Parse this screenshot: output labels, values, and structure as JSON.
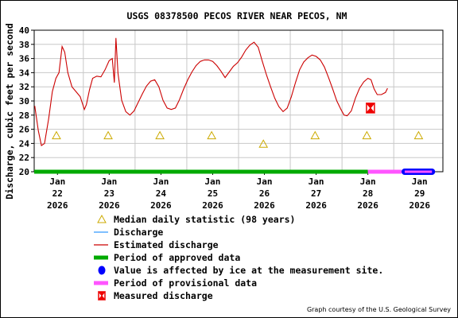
{
  "chart_data": {
    "type": "line",
    "title": "USGS 08378500 PECOS RIVER NEAR PECOS, NM",
    "ylabel": "Discharge, cubic feet per second",
    "ylim": [
      20,
      40
    ],
    "yticks": [
      20,
      22,
      24,
      26,
      28,
      30,
      32,
      34,
      36,
      38,
      40
    ],
    "xlim": [
      21.55,
      29.45
    ],
    "xticks": [
      {
        "x": 22,
        "label": [
          "Jan",
          "22",
          "2026"
        ]
      },
      {
        "x": 23,
        "label": [
          "Jan",
          "23",
          "2026"
        ]
      },
      {
        "x": 24,
        "label": [
          "Jan",
          "24",
          "2026"
        ]
      },
      {
        "x": 25,
        "label": [
          "Jan",
          "25",
          "2026"
        ]
      },
      {
        "x": 26,
        "label": [
          "Jan",
          "26",
          "2026"
        ]
      },
      {
        "x": 27,
        "label": [
          "Jan",
          "27",
          "2026"
        ]
      },
      {
        "x": 28,
        "label": [
          "Jan",
          "28",
          "2026"
        ]
      },
      {
        "x": 29,
        "label": [
          "Jan",
          "29",
          "2026"
        ]
      }
    ],
    "grid": true,
    "series": [
      {
        "name": "Estimated discharge",
        "color": "#cc0000",
        "points": [
          [
            21.56,
            29.3
          ],
          [
            21.63,
            25.8
          ],
          [
            21.69,
            23.7
          ],
          [
            21.75,
            24.0
          ],
          [
            21.83,
            27.5
          ],
          [
            21.9,
            31.3
          ],
          [
            21.97,
            33.2
          ],
          [
            22.03,
            34.0
          ],
          [
            22.09,
            37.7
          ],
          [
            22.14,
            36.9
          ],
          [
            22.2,
            34.0
          ],
          [
            22.28,
            32.0
          ],
          [
            22.36,
            31.3
          ],
          [
            22.44,
            30.6
          ],
          [
            22.52,
            28.8
          ],
          [
            22.56,
            29.5
          ],
          [
            22.62,
            31.6
          ],
          [
            22.68,
            33.2
          ],
          [
            22.76,
            33.5
          ],
          [
            22.84,
            33.4
          ],
          [
            22.92,
            34.4
          ],
          [
            23.0,
            35.7
          ],
          [
            23.06,
            36.0
          ],
          [
            23.1,
            32.6
          ],
          [
            23.13,
            38.9
          ],
          [
            23.17,
            33.9
          ],
          [
            23.24,
            30.1
          ],
          [
            23.32,
            28.5
          ],
          [
            23.4,
            28.0
          ],
          [
            23.48,
            28.6
          ],
          [
            23.56,
            29.8
          ],
          [
            23.64,
            31.0
          ],
          [
            23.72,
            32.1
          ],
          [
            23.8,
            32.8
          ],
          [
            23.88,
            33.0
          ],
          [
            23.96,
            32.0
          ],
          [
            24.04,
            30.1
          ],
          [
            24.12,
            29.0
          ],
          [
            24.2,
            28.8
          ],
          [
            24.28,
            29.0
          ],
          [
            24.36,
            30.2
          ],
          [
            24.44,
            31.7
          ],
          [
            24.52,
            33.0
          ],
          [
            24.6,
            34.1
          ],
          [
            24.68,
            35.0
          ],
          [
            24.76,
            35.6
          ],
          [
            24.84,
            35.8
          ],
          [
            24.92,
            35.8
          ],
          [
            25.0,
            35.6
          ],
          [
            25.08,
            35.0
          ],
          [
            25.16,
            34.2
          ],
          [
            25.24,
            33.3
          ],
          [
            25.32,
            34.1
          ],
          [
            25.4,
            34.9
          ],
          [
            25.48,
            35.4
          ],
          [
            25.56,
            36.2
          ],
          [
            25.64,
            37.2
          ],
          [
            25.72,
            37.9
          ],
          [
            25.8,
            38.3
          ],
          [
            25.88,
            37.6
          ],
          [
            25.96,
            35.6
          ],
          [
            26.04,
            33.7
          ],
          [
            26.12,
            32.0
          ],
          [
            26.2,
            30.4
          ],
          [
            26.28,
            29.2
          ],
          [
            26.36,
            28.5
          ],
          [
            26.44,
            29.0
          ],
          [
            26.52,
            30.6
          ],
          [
            26.6,
            32.6
          ],
          [
            26.68,
            34.4
          ],
          [
            26.76,
            35.5
          ],
          [
            26.84,
            36.1
          ],
          [
            26.92,
            36.5
          ],
          [
            27.0,
            36.3
          ],
          [
            27.08,
            35.8
          ],
          [
            27.16,
            34.8
          ],
          [
            27.24,
            33.3
          ],
          [
            27.32,
            31.7
          ],
          [
            27.4,
            30.0
          ],
          [
            27.48,
            28.8
          ],
          [
            27.54,
            28.0
          ],
          [
            27.6,
            27.9
          ],
          [
            27.68,
            28.6
          ],
          [
            27.76,
            30.4
          ],
          [
            27.84,
            31.8
          ],
          [
            27.92,
            32.7
          ],
          [
            28.0,
            33.2
          ],
          [
            28.06,
            33.0
          ],
          [
            28.12,
            31.7
          ],
          [
            28.18,
            30.9
          ],
          [
            28.26,
            30.9
          ],
          [
            28.34,
            31.2
          ],
          [
            28.38,
            31.8
          ]
        ]
      }
    ],
    "median": {
      "name": "Median daily statistic (98 years)",
      "color": "#ccaa00",
      "points": [
        [
          21.98,
          25.1
        ],
        [
          22.98,
          25.1
        ],
        [
          23.98,
          25.1
        ],
        [
          24.98,
          25.1
        ],
        [
          25.98,
          23.9
        ],
        [
          26.98,
          25.1
        ],
        [
          27.98,
          25.1
        ],
        [
          28.98,
          25.1
        ]
      ]
    },
    "measured": {
      "name": "Measured discharge",
      "color": "#ee0000",
      "points": [
        [
          28.05,
          29.0
        ]
      ]
    },
    "periods": [
      {
        "name": "Period of approved data",
        "color": "#00aa00",
        "from": 21.55,
        "to": 28.0
      },
      {
        "name": "Period of provisional data",
        "color": "#ff55ff",
        "from": 28.0,
        "to": 28.65
      },
      {
        "name": "Value is affected by ice at the measurement site.",
        "color": "#0000ff",
        "from": 28.65,
        "to": 29.3
      }
    ],
    "legend": {
      "position": "bottom",
      "items": [
        {
          "label": "Median daily statistic (98 years)",
          "symbol": "triangle",
          "color": "#ccaa00"
        },
        {
          "label": "Discharge",
          "symbol": "line",
          "color": "#3399ff"
        },
        {
          "label": "Estimated discharge",
          "symbol": "line",
          "color": "#cc0000"
        },
        {
          "label": "Period of approved data",
          "symbol": "bar",
          "color": "#00aa00"
        },
        {
          "label": "Value is affected by ice at the measurement site.",
          "symbol": "dot",
          "color": "#0000ff"
        },
        {
          "label": "Period of provisional data",
          "symbol": "bar",
          "color": "#ff55ff"
        },
        {
          "label": "Measured discharge",
          "symbol": "bowtie",
          "color": "#ee0000"
        }
      ]
    },
    "credit": "Graph courtesy of the U.S. Geological Survey"
  }
}
